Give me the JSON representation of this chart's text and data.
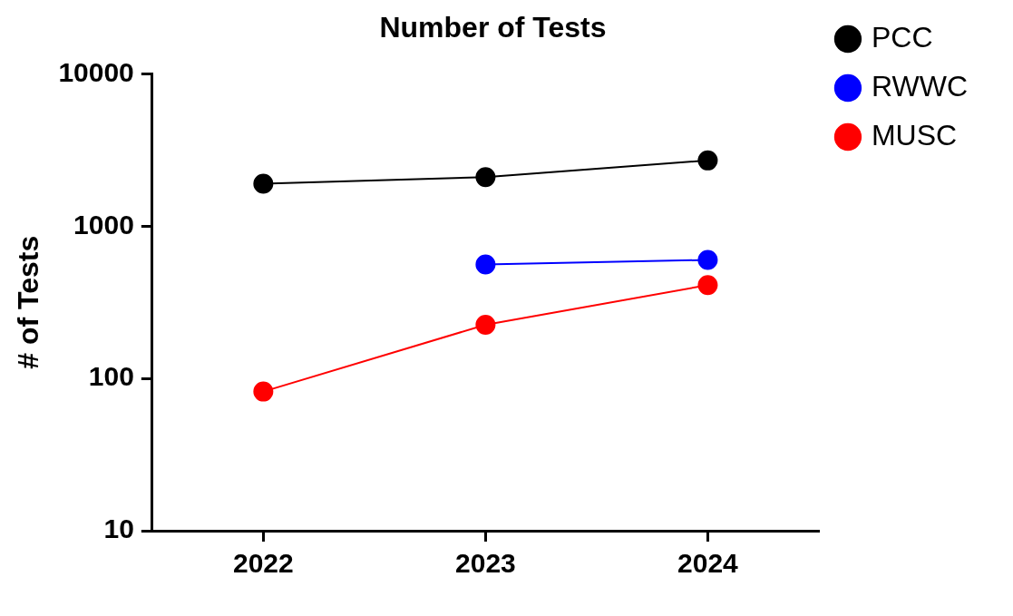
{
  "chart_data": {
    "type": "line",
    "title": "Number of Tests",
    "ylabel": "# of Tests",
    "categories": [
      "2022",
      "2023",
      "2024"
    ],
    "series": [
      {
        "name": "PCC",
        "color": "#000000",
        "values": [
          1900,
          2100,
          2700
        ]
      },
      {
        "name": "RWWC",
        "color": "#0000ff",
        "values": [
          null,
          560,
          600
        ]
      },
      {
        "name": "MUSC",
        "color": "#ff0000",
        "values": [
          82,
          225,
          410
        ]
      }
    ],
    "log": "y",
    "ylim": [
      10,
      10000
    ],
    "yticks": [
      10,
      100,
      1000,
      10000
    ],
    "grid": false,
    "legend": "right",
    "marker": "circle",
    "line_style": "solid"
  }
}
